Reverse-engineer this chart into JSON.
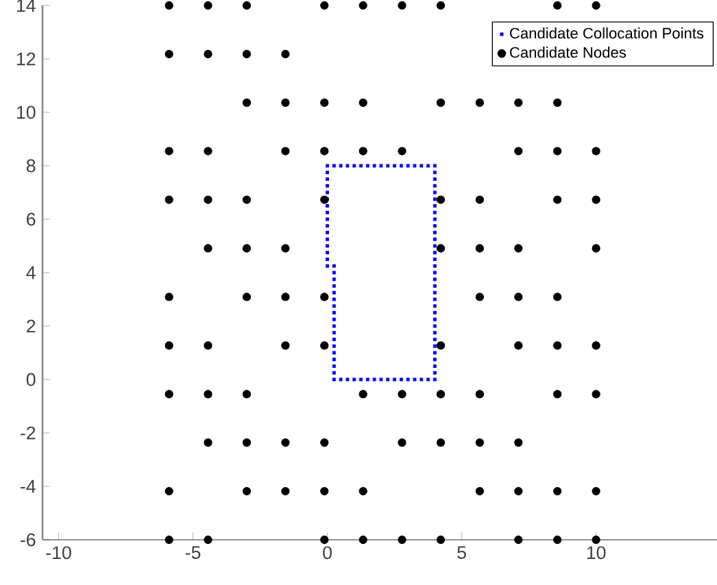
{
  "chart_data": {
    "type": "scatter",
    "xlim": [
      -10.6,
      14.5
    ],
    "ylim": [
      -6,
      14
    ],
    "xticks": [
      -10,
      -5,
      0,
      5,
      10
    ],
    "yticks": [
      -6,
      -4,
      -2,
      0,
      2,
      4,
      6,
      8,
      10,
      12,
      14
    ],
    "legend": "top right",
    "grid": false,
    "series": [
      {
        "name": "Candidate Collocation Points",
        "color": "#0000ff",
        "marker": "square",
        "x": [
          0,
          0.25,
          0.5,
          0.75,
          1,
          1.25,
          1.5,
          1.75,
          2,
          2.25,
          2.5,
          2.75,
          3,
          3.25,
          3.5,
          3.75,
          4,
          4,
          4,
          4,
          4,
          4,
          4,
          4,
          4,
          4,
          4,
          4,
          4,
          4,
          4,
          4,
          4,
          4,
          4,
          4,
          4,
          4,
          4,
          4,
          4,
          4,
          4,
          4,
          4,
          4,
          4,
          4,
          4,
          3.75,
          3.5,
          3.25,
          3,
          2.75,
          2.5,
          2.25,
          2,
          1.75,
          1.5,
          1.25,
          1,
          0.75,
          0.5,
          0.25,
          0.25,
          0.25,
          0.25,
          0.25,
          0.25,
          0.25,
          0.25,
          0.25,
          0.25,
          0.25,
          0.25,
          0.25,
          0.25,
          0.25,
          0.25,
          0.25,
          0.25,
          0,
          0,
          0,
          0,
          0,
          0,
          0,
          0,
          0,
          0,
          0,
          0,
          0,
          0,
          0
        ],
        "values": [
          8,
          8,
          8,
          8,
          8,
          8,
          8,
          8,
          8,
          8,
          8,
          8,
          8,
          8,
          8,
          8,
          8,
          7.75,
          7.5,
          7.25,
          7,
          6.75,
          6.5,
          6.25,
          6,
          5.75,
          5.5,
          5.25,
          5,
          4.75,
          4.5,
          4.25,
          4,
          3.75,
          3.5,
          3.25,
          3,
          2.75,
          2.5,
          2.25,
          2,
          1.75,
          1.5,
          1.25,
          1,
          0.75,
          0.5,
          0.25,
          0,
          0,
          0,
          0,
          0,
          0,
          0,
          0,
          0,
          0,
          0,
          0,
          0,
          0,
          0,
          0,
          0.25,
          0.5,
          0.75,
          1,
          1.25,
          1.5,
          1.75,
          2,
          2.25,
          2.5,
          2.75,
          3,
          3.25,
          3.5,
          3.75,
          4,
          4.25,
          4.25,
          4.5,
          4.75,
          5,
          5.25,
          5.5,
          5.75,
          6,
          6.25,
          6.5,
          6.75,
          7,
          7.25,
          7.5,
          7.75
        ]
      },
      {
        "name": "Candidate Nodes",
        "color": "#000000",
        "marker": "circle",
        "x": [
          -5.89,
          -4.44,
          -3,
          -0.11,
          1.33,
          2.78,
          4.22,
          8.56,
          10,
          -5.89,
          -4.44,
          -3,
          -1.56,
          -3,
          -1.56,
          -0.11,
          1.33,
          4.22,
          5.67,
          7.11,
          8.56,
          -5.89,
          -4.44,
          -1.56,
          -0.11,
          1.33,
          2.78,
          7.11,
          8.56,
          10,
          -5.89,
          -4.44,
          -3,
          -0.11,
          4.22,
          5.67,
          8.56,
          10,
          -4.44,
          -3,
          -1.56,
          4.22,
          5.67,
          7.11,
          10,
          -5.89,
          -3,
          -1.56,
          -0.11,
          5.67,
          7.11,
          8.56,
          -5.89,
          -4.44,
          -1.56,
          -0.11,
          4.22,
          7.11,
          8.56,
          10,
          -5.89,
          -4.44,
          -3,
          1.33,
          2.78,
          4.22,
          5.67,
          8.56,
          10,
          -4.44,
          -3,
          -1.56,
          -0.11,
          2.78,
          4.22,
          5.67,
          7.11,
          -5.89,
          -3,
          -1.56,
          -0.11,
          1.33,
          5.67,
          7.11,
          8.56,
          10,
          -5.89,
          -4.44,
          -0.11,
          1.33,
          2.78,
          4.22,
          7.11,
          8.56,
          10
        ],
        "values": [
          14,
          14,
          14,
          14,
          14,
          14,
          14,
          14,
          14,
          12.18,
          12.18,
          12.18,
          12.18,
          10.36,
          10.36,
          10.36,
          10.36,
          10.36,
          10.36,
          10.36,
          10.36,
          8.55,
          8.55,
          8.55,
          8.55,
          8.55,
          8.55,
          8.55,
          8.55,
          8.55,
          6.73,
          6.73,
          6.73,
          6.73,
          6.73,
          6.73,
          6.73,
          6.73,
          4.91,
          4.91,
          4.91,
          4.91,
          4.91,
          4.91,
          4.91,
          3.09,
          3.09,
          3.09,
          3.09,
          3.09,
          3.09,
          3.09,
          1.27,
          1.27,
          1.27,
          1.27,
          1.27,
          1.27,
          1.27,
          1.27,
          -0.55,
          -0.55,
          -0.55,
          -0.55,
          -0.55,
          -0.55,
          -0.55,
          -0.55,
          -0.55,
          -2.36,
          -2.36,
          -2.36,
          -2.36,
          -2.36,
          -2.36,
          -2.36,
          -2.36,
          -4.18,
          -4.18,
          -4.18,
          -4.18,
          -4.18,
          -4.18,
          -4.18,
          -4.18,
          -4.18,
          -6,
          -6,
          -6,
          -6,
          -6,
          -6,
          -6,
          -6,
          -6
        ]
      }
    ]
  }
}
